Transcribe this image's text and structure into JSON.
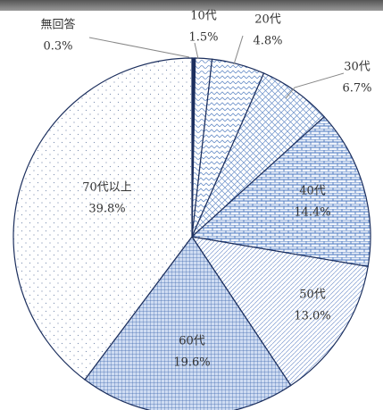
{
  "chart_data": {
    "type": "pie",
    "categories": [
      "無回答",
      "10代",
      "20代",
      "30代",
      "40代",
      "50代",
      "60代",
      "70代以上"
    ],
    "values": [
      0.3,
      1.5,
      4.8,
      6.7,
      14.4,
      13.0,
      19.6,
      39.8
    ],
    "value_labels": [
      "0.3%",
      "1.5%",
      "4.8%",
      "6.7%",
      "14.4%",
      "13.0%",
      "19.6%",
      "39.8%"
    ]
  }
}
